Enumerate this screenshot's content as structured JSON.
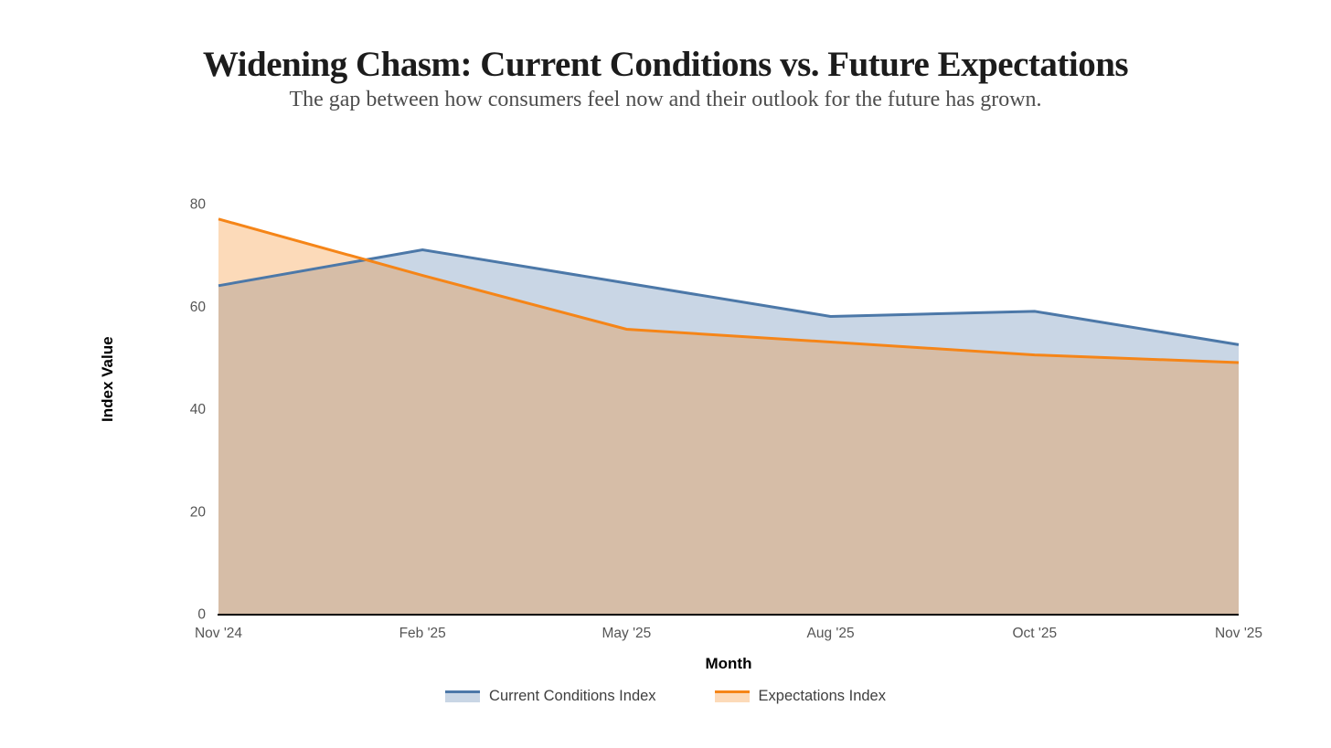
{
  "header": {
    "title": "Widening Chasm: Current Conditions vs. Future Expectations",
    "subtitle": "The gap between how consumers feel now and their outlook for the future has grown."
  },
  "chart_data": {
    "type": "area",
    "title": "Widening Chasm: Current Conditions vs. Future Expectations",
    "subtitle": "The gap between how consumers feel now and their outlook for the future has grown.",
    "categories": [
      "Nov '24",
      "Feb '25",
      "May '25",
      "Aug '25",
      "Oct '25",
      "Nov '25"
    ],
    "series": [
      {
        "name": "Current Conditions Index",
        "color": "#4c78a8",
        "fill_opacity": 0.3,
        "values": [
          64,
          71,
          64.5,
          58,
          59,
          52.5
        ]
      },
      {
        "name": "Expectations Index",
        "color": "#f58518",
        "fill_opacity": 0.3,
        "values": [
          77,
          66,
          55.5,
          53,
          50.5,
          49
        ]
      }
    ],
    "xlabel": "Month",
    "ylabel": "Index Value",
    "ylim": [
      0,
      80
    ],
    "yticks": [
      0,
      20,
      40,
      60,
      80
    ],
    "grid": false,
    "legend_position": "bottom",
    "axis_line_color": "#000000",
    "tick_label_color": "#555555"
  }
}
